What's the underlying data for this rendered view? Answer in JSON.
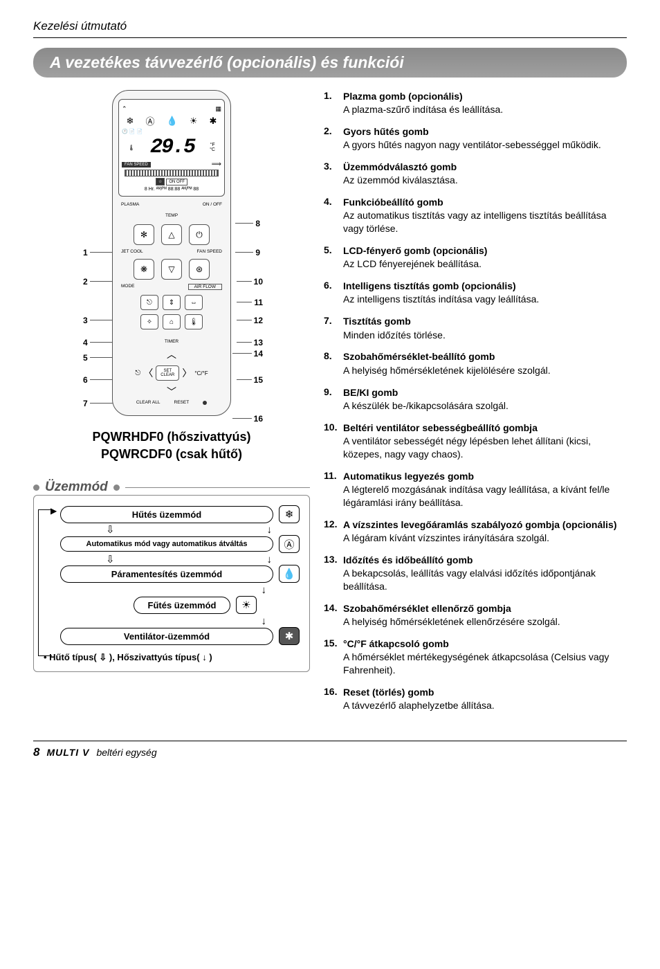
{
  "header": "Kezelési útmutató",
  "title": "A vezetékes távvezérlő (opcionális) és funkciói",
  "remote": {
    "screen": {
      "icon_row": [
        "❄",
        "Ⓐ",
        "💧",
        "☀",
        "✱"
      ],
      "sched_icons": [
        "🕐",
        "📄",
        "📄"
      ],
      "temp_digits": "29.5",
      "temp_unit_f": "°F",
      "temp_unit_c": "°C",
      "fan_speed_label": "FAN SPEED",
      "on_off_top": "ON    OFF",
      "set_temp_line": "8 Hr.  ᴬᴹ/ᴾᴹ 88:88 ᴬᴹ/ᴾᴹ 88"
    },
    "labels": {
      "plasma": "PLASMA",
      "onoff": "ON / OFF",
      "temp": "TEMP",
      "jet_cool": "JET COOL",
      "fan_speed": "FAN SPEED",
      "mode": "MODE",
      "air_flow": "AIR FLOW",
      "timer": "TIMER",
      "set_clear": "SET\nCLEAR",
      "clear_all": "CLEAR ALL",
      "reset": "RESET"
    },
    "callouts_left": [
      "1",
      "2",
      "3",
      "4",
      "5",
      "6",
      "7"
    ],
    "callouts_right": [
      "8",
      "9",
      "10",
      "11",
      "12",
      "13",
      "14",
      "15",
      "16"
    ]
  },
  "models": {
    "line1": "PQWRHDF0 (hőszivattyús)",
    "line2": "PQWRCDF0 (csak hűtő)"
  },
  "mode": {
    "heading": "Üzemmód",
    "rows": [
      {
        "label": "Hűtés üzemmód",
        "icon": "❄"
      },
      {
        "label": "Automatikus mód vagy automatikus átváltás",
        "icon": "Ⓐ",
        "small": true
      },
      {
        "label": "Páramentesítés üzemmód",
        "icon": "💧"
      },
      {
        "label": "Fűtés üzemmód",
        "icon": "☀",
        "short": true
      },
      {
        "label": "Ventilátor-üzemmód",
        "icon": "✱"
      }
    ],
    "footnote": "• Hűtő típus( ⇩ ), Hőszivattyús típus( ↓ )"
  },
  "features": [
    {
      "n": "1.",
      "t": "Plazma gomb (opcionális)",
      "d": "A plazma-szűrő indítása és leállítása."
    },
    {
      "n": "2.",
      "t": "Gyors hűtés gomb",
      "d": "A gyors hűtés nagyon nagy ventilátor-sebességgel működik."
    },
    {
      "n": "3.",
      "t": "Üzemmódválasztó gomb",
      "d": "Az üzemmód kiválasztása."
    },
    {
      "n": "4.",
      "t": "Funkcióbeállító gomb",
      "d": "Az automatikus tisztítás vagy az intelligens tisztítás beállítása vagy törlése."
    },
    {
      "n": "5.",
      "t": "LCD-fényerő gomb (opcionális)",
      "d": "Az LCD fényerejének beállítása."
    },
    {
      "n": "6.",
      "t": "Intelligens tisztítás gomb (opcionális)",
      "d": "Az intelligens tisztítás indítása vagy leállítása."
    },
    {
      "n": "7.",
      "t": "Tisztítás gomb",
      "d": "Minden időzítés törlése."
    },
    {
      "n": "8.",
      "t": "Szobahőmérséklet-beállító gomb",
      "d": "A helyiség hőmérsékletének kijelölésére szolgál."
    },
    {
      "n": "9.",
      "t": "BE/KI gomb",
      "d": "A készülék be-/kikapcsolására szolgál."
    },
    {
      "n": "10.",
      "t": "Beltéri ventilátor sebességbeállító gombja",
      "d": "A ventilátor sebességét négy lépésben lehet állítani (kicsi, közepes, nagy vagy chaos)."
    },
    {
      "n": "11.",
      "t": "Automatikus legyezés gomb",
      "d": "A légterelő mozgásának indítása vagy leállítása, a kívánt fel/le légáramlási irány beállítása."
    },
    {
      "n": "12.",
      "t": "A vízszintes levegőáramlás szabályozó gombja (opcionális)",
      "d": "A légáram kívánt vízszintes irányítására szolgál."
    },
    {
      "n": "13.",
      "t": "Időzítés és időbeállító gomb",
      "d": "A bekapcsolás, leállítás vagy elalvási időzítés időpontjának beállítása."
    },
    {
      "n": "14.",
      "t": "Szobahőmérséklet ellenőrző gombja",
      "d": "A helyiség hőmérsékletének ellenőrzésére szolgál."
    },
    {
      "n": "15.",
      "t": "°C/°F átkapcsoló gomb",
      "d": "A hőmérséklet mértékegységének átkapcsolása (Celsius vagy Fahrenheit)."
    },
    {
      "n": "16.",
      "t": "Reset (törlés) gomb",
      "d": "A távvezérlő alaphelyzetbe állítása."
    }
  ],
  "footer": {
    "page": "8",
    "brand": "MULTI V",
    "sep": ".",
    "tail": "beltéri egység"
  }
}
